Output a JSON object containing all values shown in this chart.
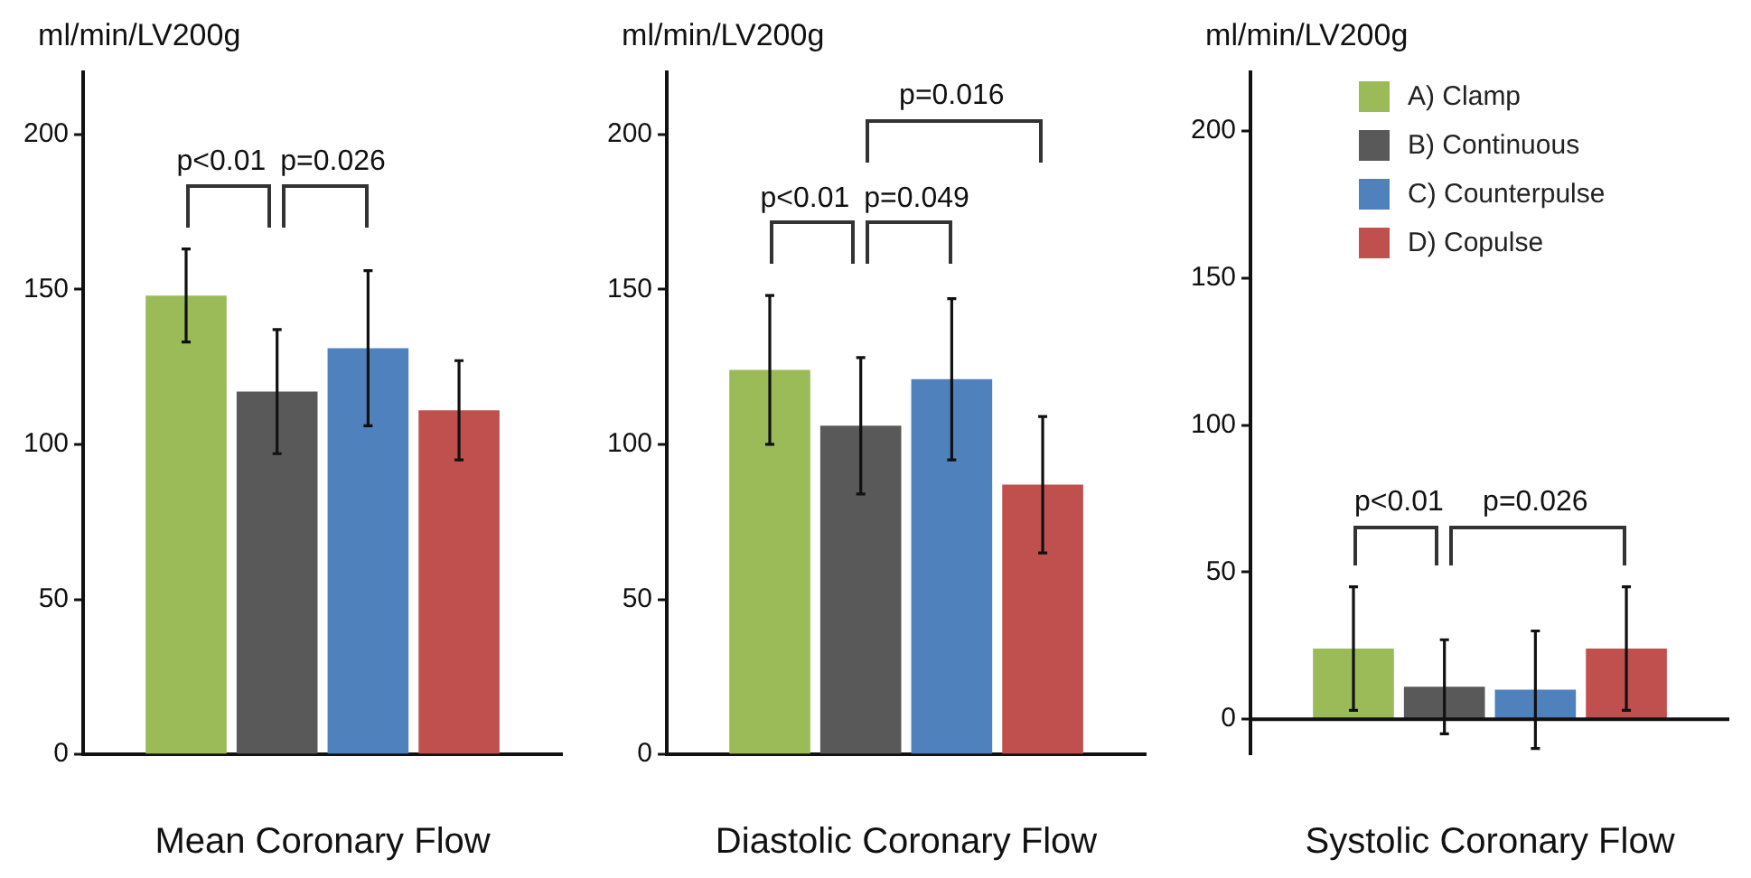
{
  "chart_data": [
    {
      "type": "bar",
      "ylabel": "ml/min/LV200g",
      "xlabel": "Mean Coronary Flow",
      "categories": [
        null
      ],
      "ylim": [
        0,
        220
      ],
      "yticks": [
        0,
        50,
        100,
        150,
        200
      ],
      "grid": false,
      "legend": false,
      "annotations": [
        "p<0.01",
        "p=0.026"
      ],
      "series": [
        {
          "color": "#9bbb59",
          "values": [
            148
          ],
          "errors": [
            15
          ]
        },
        {
          "color": "#595959",
          "values": [
            117
          ],
          "errors": [
            20
          ]
        },
        {
          "color": "#4f81bd",
          "values": [
            131
          ],
          "errors": [
            25
          ]
        },
        {
          "color": "#c0504d",
          "values": [
            111
          ],
          "errors": [
            16
          ]
        }
      ]
    },
    {
      "type": "bar",
      "ylabel": "ml/min/LV200g",
      "xlabel": "Diastolic Coronary Flow",
      "categories": [
        null
      ],
      "ylim": [
        0,
        220
      ],
      "yticks": [
        0,
        50,
        100,
        150,
        200
      ],
      "grid": false,
      "legend": false,
      "annotations": [
        "p<0.01",
        "p=0.049",
        "p=0.016"
      ],
      "series": [
        {
          "color": "#9bbb59",
          "values": [
            124
          ],
          "errors": [
            24
          ]
        },
        {
          "color": "#595959",
          "values": [
            106
          ],
          "errors": [
            22
          ]
        },
        {
          "color": "#4f81bd",
          "values": [
            121
          ],
          "errors": [
            26
          ]
        },
        {
          "color": "#c0504d",
          "values": [
            87
          ],
          "errors": [
            22
          ]
        }
      ]
    },
    {
      "type": "bar",
      "ylabel": "ml/min/LV200g",
      "xlabel": "Systolic Coronary Flow",
      "categories": [
        null
      ],
      "ylim": [
        -12,
        220
      ],
      "yticks": [
        0,
        50,
        100,
        150,
        200
      ],
      "grid": false,
      "ref_lines": [
        {
          "axis": "y",
          "value": 0
        }
      ],
      "legend": "top right",
      "annotations": [
        "p<0.01",
        "p=0.026"
      ],
      "series": [
        {
          "name": "A) Clamp",
          "color": "#9bbb59",
          "values": [
            24
          ],
          "errors": [
            21
          ]
        },
        {
          "name": "B) Continuous",
          "color": "#595959",
          "values": [
            11
          ],
          "errors": [
            16
          ]
        },
        {
          "name": "C) Counterpulse",
          "color": "#4f81bd",
          "values": [
            10
          ],
          "errors": [
            20
          ]
        },
        {
          "name": "D) Copulse",
          "color": "#c0504d",
          "values": [
            24
          ],
          "errors": [
            21
          ]
        }
      ]
    }
  ]
}
